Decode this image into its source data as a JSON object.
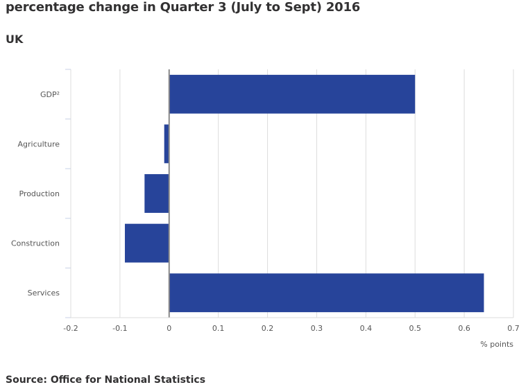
{
  "header": {
    "title": "percentage change in Quarter 3 (July to Sept) 2016",
    "subtitle": "UK"
  },
  "footer": {
    "source": "Source: Office for National Statistics"
  },
  "chart_data": {
    "type": "bar",
    "orientation": "horizontal",
    "categories": [
      "GDP²",
      "Agriculture",
      "Production",
      "Construction",
      "Services"
    ],
    "values": [
      0.5,
      -0.01,
      -0.05,
      -0.09,
      0.64
    ],
    "x_ticks": [
      -0.2,
      -0.1,
      0,
      0.1,
      0.2,
      0.3,
      0.4,
      0.5,
      0.6,
      0.7
    ],
    "xlim": [
      -0.2,
      0.7
    ],
    "xlabel": "% points",
    "grid": "vertical",
    "bar_color": "#27449a",
    "legend": "none"
  }
}
